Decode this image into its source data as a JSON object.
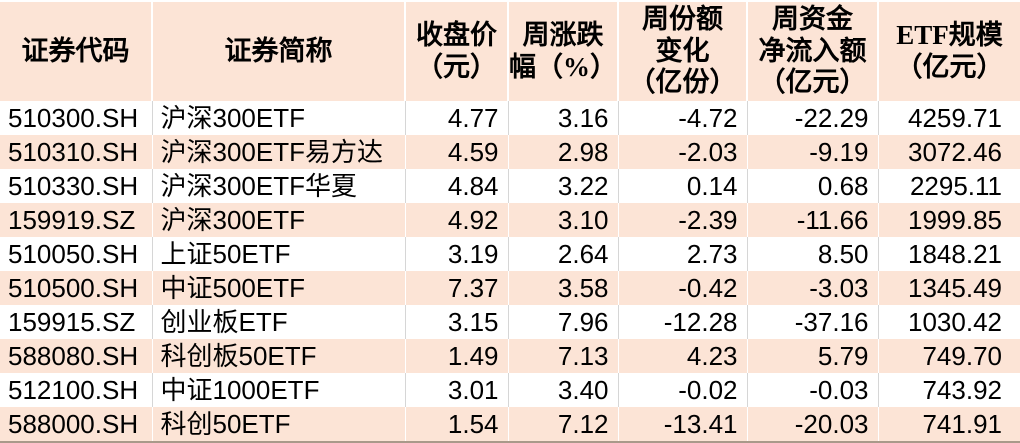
{
  "colors": {
    "row_highlight": "#fce4d6",
    "grid_line_gray": "#d6d6d6",
    "grid_line_white": "#ffffff",
    "table_bottom_border": "#a9998a",
    "text": "#000000"
  },
  "chart_data": {
    "type": "table",
    "title": "",
    "columns": [
      {
        "label": "证券代码",
        "align": "left"
      },
      {
        "label": "证券简称",
        "align": "left"
      },
      {
        "label": "收盘价\n（元）",
        "align": "right"
      },
      {
        "label": "周涨跌\n幅（%）",
        "align": "right"
      },
      {
        "label": "周份额\n变化\n（亿份）",
        "align": "right"
      },
      {
        "label": "周资金\n净流入额\n（亿元）",
        "align": "right"
      },
      {
        "label": "ETF规模\n（亿元）",
        "align": "right"
      }
    ],
    "rows": [
      [
        "510300.SH",
        "沪深300ETF",
        "4.77",
        "3.16",
        "-4.72",
        "-22.29",
        "4259.71"
      ],
      [
        "510310.SH",
        "沪深300ETF易方达",
        "4.59",
        "2.98",
        "-2.03",
        "-9.19",
        "3072.46"
      ],
      [
        "510330.SH",
        "沪深300ETF华夏",
        "4.84",
        "3.22",
        "0.14",
        "0.68",
        "2295.11"
      ],
      [
        "159919.SZ",
        "沪深300ETF",
        "4.92",
        "3.10",
        "-2.39",
        "-11.66",
        "1999.85"
      ],
      [
        "510050.SH",
        "上证50ETF",
        "3.19",
        "2.64",
        "2.73",
        "8.50",
        "1848.21"
      ],
      [
        "510500.SH",
        "中证500ETF",
        "7.37",
        "3.58",
        "-0.42",
        "-3.03",
        "1345.49"
      ],
      [
        "159915.SZ",
        "创业板ETF",
        "3.15",
        "7.96",
        "-12.28",
        "-37.16",
        "1030.42"
      ],
      [
        "588080.SH",
        "科创板50ETF",
        "1.49",
        "7.13",
        "4.23",
        "5.79",
        "749.70"
      ],
      [
        "512100.SH",
        "中证1000ETF",
        "3.01",
        "3.40",
        "-0.02",
        "-0.03",
        "743.92"
      ],
      [
        "588000.SH",
        "科创50ETF",
        "1.54",
        "7.12",
        "-13.41",
        "-20.03",
        "741.91"
      ]
    ],
    "layout": {
      "row_striping": "even rows highlighted peach, starting with header peach then white data row",
      "header_rows": 1
    }
  }
}
